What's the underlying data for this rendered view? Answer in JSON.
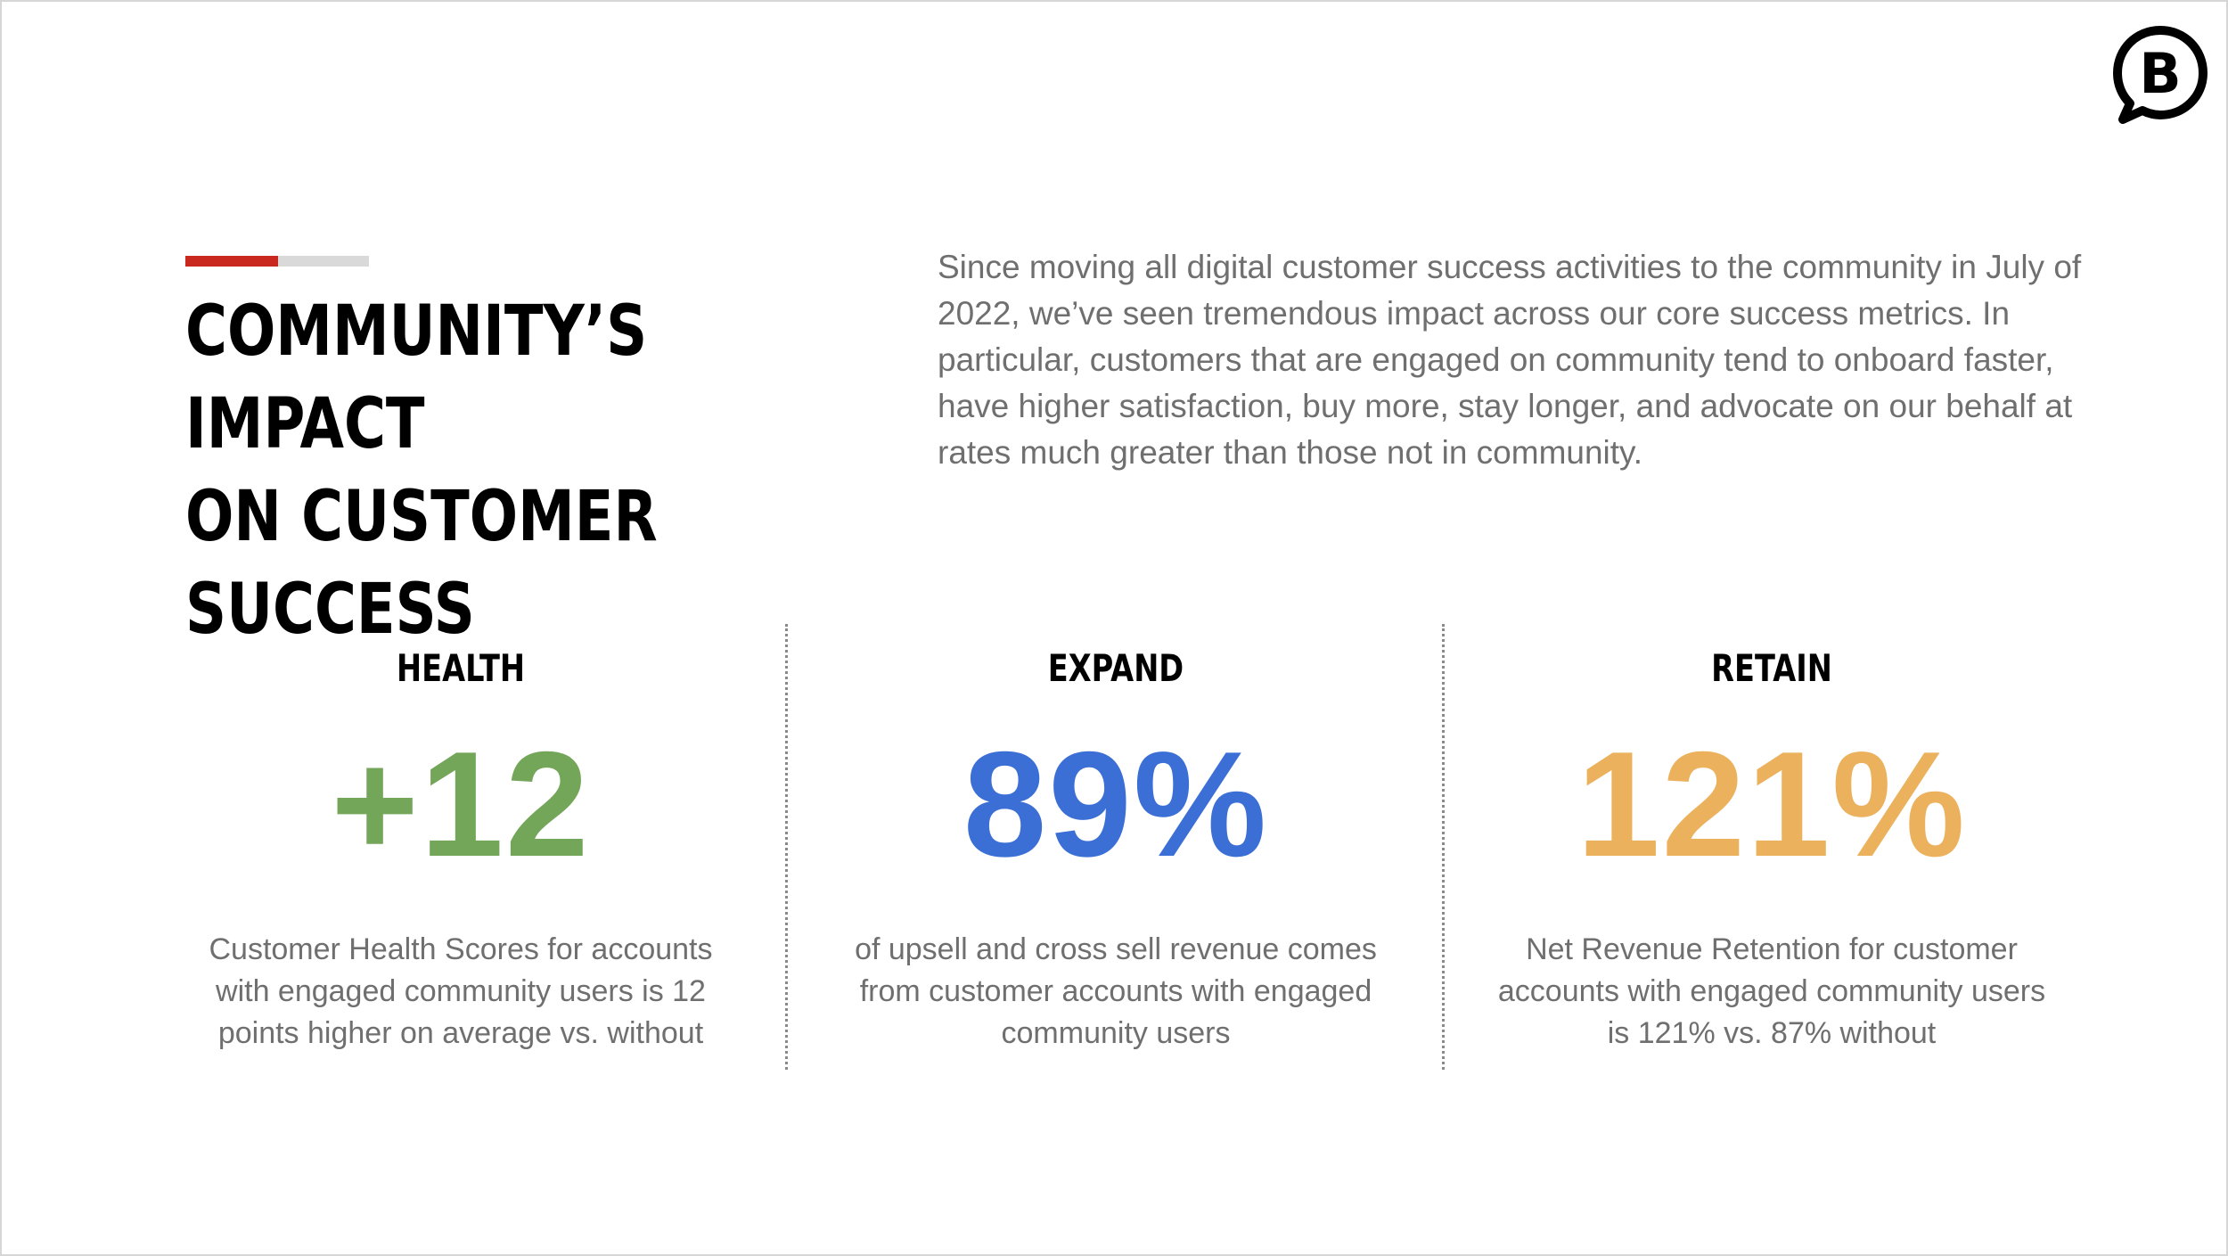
{
  "slide": {
    "title": "COMMUNITY’S IMPACT\nON CUSTOMER SUCCESS",
    "intro": "Since moving all digital customer success activities to the community in July of 2022, we’ve seen tremendous impact across our core success metrics. In particular, customers that are engaged on community tend to onboard faster, have higher satisfaction, buy more, stay longer, and advocate on our behalf at rates much greater than those not in community.",
    "logo": {
      "icon": "b-speech-bubble-icon",
      "letter": "B"
    },
    "accent": {
      "primary": "#c8281e",
      "secondary": "#d9d9d9"
    }
  },
  "metrics": [
    {
      "label": "HEALTH",
      "value": "+12",
      "color": "#74a65a",
      "description": "Customer Health Scores for accounts with engaged community users is 12 points higher on average vs. without"
    },
    {
      "label": "EXPAND",
      "value": "89%",
      "color": "#3c6fd6",
      "description": "of upsell and cross sell revenue comes from customer accounts with engaged community users"
    },
    {
      "label": "RETAIN",
      "value": "121%",
      "color": "#ebb15c",
      "description": "Net Revenue Retention for customer accounts with engaged community users is 121% vs. 87% without"
    }
  ]
}
